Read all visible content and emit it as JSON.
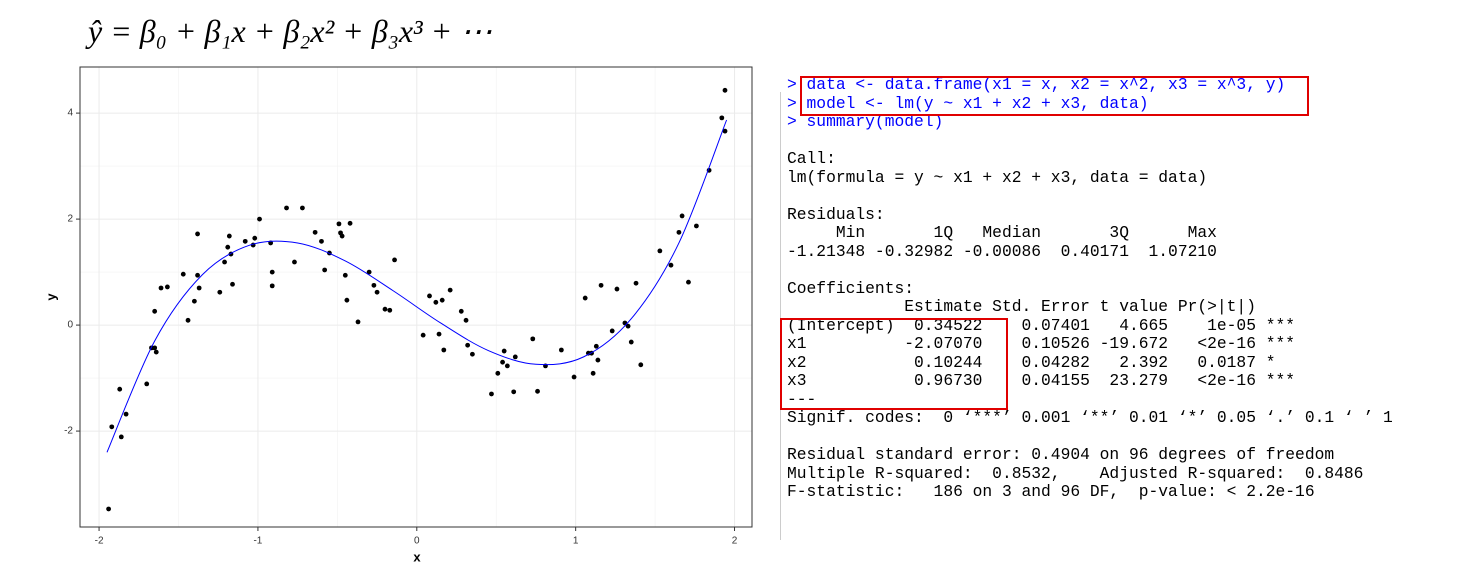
{
  "formula": "ŷ = β₀ + β₁x + β₂x² + β₃x³ + ⋯",
  "chart_data": {
    "type": "scatter",
    "xlabel": "x",
    "ylabel": "y",
    "xlim": [
      -2.12,
      2.11
    ],
    "ylim": [
      -3.81,
      4.87
    ],
    "xticks": [
      -2,
      -1,
      0,
      1,
      2
    ],
    "yticks": [
      -2,
      0,
      2,
      4
    ],
    "grid": true,
    "series": [
      {
        "kind": "points",
        "color": "#000000",
        "x": [
          -1.94,
          -1.92,
          -1.87,
          -1.86,
          -1.83,
          -1.7,
          -1.67,
          -1.65,
          -1.65,
          -1.64,
          -1.61,
          -1.57,
          -1.47,
          -1.44,
          -1.4,
          -1.38,
          -1.38,
          -1.37,
          -1.24,
          -1.21,
          -1.19,
          -1.18,
          -1.17,
          -1.16,
          -1.08,
          -1.03,
          -1.02,
          -0.99,
          -0.92,
          -0.91,
          -0.91,
          -0.82,
          -0.72,
          -0.77,
          -0.64,
          -0.6,
          -0.58,
          -0.55,
          -0.49,
          -0.48,
          -0.47,
          -0.45,
          -0.44,
          -0.42,
          -0.37,
          -0.3,
          -0.27,
          -0.25,
          -0.2,
          -0.17,
          -0.14,
          0.04,
          0.08,
          0.12,
          0.14,
          0.16,
          0.17,
          0.21,
          0.28,
          0.31,
          0.32,
          0.35,
          0.47,
          0.51,
          0.54,
          0.55,
          0.57,
          0.62,
          0.61,
          0.73,
          0.76,
          0.81,
          0.91,
          0.99,
          1.06,
          1.08,
          1.1,
          1.11,
          1.13,
          1.14,
          1.16,
          1.23,
          1.26,
          1.31,
          1.33,
          1.35,
          1.38,
          1.41,
          1.53,
          1.6,
          1.65,
          1.67,
          1.71,
          1.76,
          1.84,
          1.92,
          1.94,
          1.94
        ],
        "values": [
          -3.47,
          -1.92,
          -1.21,
          -2.11,
          -1.68,
          -1.11,
          -0.43,
          -0.43,
          0.26,
          -0.51,
          0.7,
          0.72,
          0.96,
          0.09,
          0.45,
          0.94,
          1.72,
          0.7,
          0.62,
          1.19,
          1.47,
          1.68,
          1.34,
          0.77,
          1.58,
          1.51,
          1.64,
          2.0,
          1.55,
          1.0,
          0.74,
          2.21,
          2.21,
          1.19,
          1.75,
          1.58,
          1.04,
          1.36,
          1.91,
          1.74,
          1.68,
          0.94,
          0.47,
          1.92,
          0.06,
          1.0,
          0.75,
          0.62,
          0.3,
          0.28,
          1.23,
          -0.19,
          0.55,
          0.43,
          -0.17,
          0.47,
          -0.47,
          0.66,
          0.26,
          0.09,
          -0.38,
          -0.55,
          -1.3,
          -0.91,
          -0.7,
          -0.49,
          -0.77,
          -0.6,
          -1.26,
          -0.26,
          -1.25,
          -0.77,
          -0.47,
          -0.98,
          0.51,
          -0.53,
          -0.53,
          -0.91,
          -0.4,
          -0.66,
          0.75,
          -0.11,
          0.68,
          0.04,
          -0.02,
          -0.32,
          0.79,
          -0.75,
          1.4,
          1.13,
          1.75,
          2.06,
          0.81,
          1.87,
          2.92,
          3.91,
          4.43,
          3.66
        ]
      },
      {
        "kind": "line",
        "color": "#0000ff",
        "x": [
          -1.95,
          -1.65,
          -1.35,
          -1.05,
          -0.75,
          -0.45,
          -0.15,
          0.15,
          0.45,
          0.75,
          1.05,
          1.35,
          1.65,
          1.95
        ],
        "values": [
          -2.4,
          -0.3,
          0.95,
          1.51,
          1.55,
          1.21,
          0.65,
          0.04,
          -0.48,
          -0.74,
          -0.6,
          0.12,
          1.55,
          3.87
        ]
      }
    ]
  },
  "console": {
    "commands": [
      "> data <- data.frame(x1 = x, x2 = x^2, x3 = x^3, y)",
      "> model <- lm(y ~ x1 + x2 + x3, data)",
      "> summary(model)"
    ],
    "blocks": [
      [
        "Call:",
        "lm(formula = y ~ x1 + x2 + x3, data = data)"
      ],
      [
        "Residuals:",
        "     Min       1Q   Median       3Q      Max",
        "-1.21348 -0.32982 -0.00086  0.40171  1.07210"
      ],
      [
        "Coefficients:",
        "            Estimate Std. Error t value Pr(>|t|)",
        "(Intercept)  0.34522    0.07401   4.665    1e-05 ***",
        "x1          -2.07070    0.10526 -19.672   <2e-16 ***",
        "x2           0.10244    0.04282   2.392   0.0187 *",
        "x3           0.96730    0.04155  23.279   <2e-16 ***",
        "---",
        "Signif. codes:  0 ‘***’ 0.001 ‘**’ 0.01 ‘*’ 0.05 ‘.’ 0.1 ‘ ’ 1"
      ],
      [
        "Residual standard error: 0.4904 on 96 degrees of freedom",
        "Multiple R-squared:  0.8532,    Adjusted R-squared:  0.8486",
        "F-statistic:   186 on 3 and 96 DF,  p-value: < 2.2e-16"
      ]
    ]
  }
}
